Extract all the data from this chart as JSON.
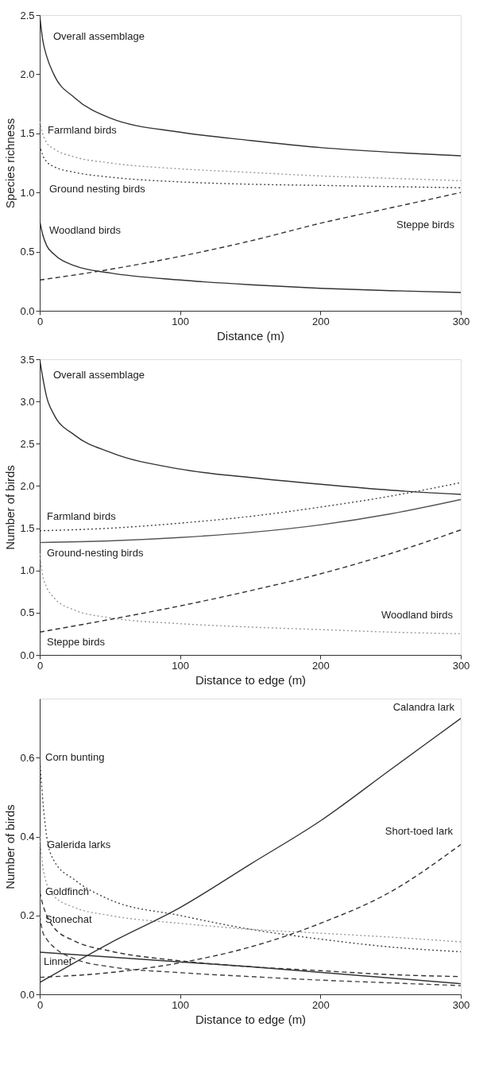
{
  "chart_data": [
    {
      "type": "line",
      "xlabel": "Distance (m)",
      "ylabel": "Species richness",
      "xlim": [
        0,
        300
      ],
      "ylim": [
        0,
        2.5
      ],
      "xticks": [
        0,
        100,
        200,
        300
      ],
      "yticks": [
        {
          "value": 0,
          "label": "0.0"
        },
        0.5,
        {
          "value": 1,
          "label": "1.0"
        },
        1.5,
        {
          "value": 2,
          "label": "2.0"
        },
        2.5
      ],
      "grid": false,
      "legend": false,
      "x": [
        0,
        2,
        5,
        10,
        25,
        50,
        100,
        150,
        200,
        250,
        300
      ],
      "series": [
        {
          "name": "Overall assemblage",
          "color": "#333333",
          "line_style": "solid",
          "values": [
            2.5,
            2.3,
            2.15,
            2.0,
            1.8,
            1.63,
            1.51,
            1.44,
            1.38,
            1.34,
            1.31
          ]
        },
        {
          "name": "Farmland birds",
          "color": "#999999",
          "line_style": "dotted",
          "values": [
            1.6,
            1.5,
            1.42,
            1.37,
            1.3,
            1.25,
            1.2,
            1.17,
            1.14,
            1.12,
            1.1
          ]
        },
        {
          "name": "Ground nesting birds",
          "color": "#444444",
          "line_style": "dotted",
          "values": [
            1.4,
            1.32,
            1.26,
            1.22,
            1.17,
            1.13,
            1.09,
            1.07,
            1.06,
            1.05,
            1.04
          ]
        },
        {
          "name": "Woodland birds",
          "color": "#333333",
          "line_style": "solid",
          "values": [
            0.76,
            0.65,
            0.55,
            0.48,
            0.38,
            0.32,
            0.26,
            0.22,
            0.19,
            0.17,
            0.155
          ]
        },
        {
          "name": "Steppe birds",
          "color": "#333333",
          "line_style": "dashed",
          "x": [
            0,
            50,
            100,
            150,
            200,
            250,
            300
          ],
          "values": [
            0.26,
            0.35,
            0.46,
            0.59,
            0.74,
            0.87,
            1.0
          ]
        }
      ]
    },
    {
      "type": "line",
      "xlabel": "Distance to edge (m)",
      "ylabel": "Number of birds",
      "xlim": [
        0,
        300
      ],
      "ylim": [
        0,
        3.5
      ],
      "xticks": [
        0,
        100,
        200,
        300
      ],
      "yticks": [
        {
          "value": 0,
          "label": "0.0"
        },
        0.5,
        {
          "value": 1,
          "label": "1.0"
        },
        1.5,
        {
          "value": 2,
          "label": "2.0"
        },
        2.5,
        {
          "value": 3,
          "label": "3.0"
        },
        3.5
      ],
      "grid": false,
      "legend": false,
      "x": [
        0,
        2,
        5,
        10,
        25,
        50,
        100,
        150,
        200,
        250,
        300
      ],
      "series": [
        {
          "name": "Overall assemblage",
          "color": "#333333",
          "line_style": "solid",
          "values": [
            3.5,
            3.3,
            3.05,
            2.85,
            2.6,
            2.4,
            2.2,
            2.1,
            2.02,
            1.95,
            1.9
          ]
        },
        {
          "name": "Farmland birds",
          "color": "#444444",
          "line_style": "dotted",
          "x": [
            0,
            50,
            100,
            150,
            200,
            250,
            300
          ],
          "values": [
            1.47,
            1.5,
            1.56,
            1.64,
            1.75,
            1.88,
            2.04
          ]
        },
        {
          "name": "Ground-nesting birds",
          "color": "#555555",
          "line_style": "solid",
          "x": [
            0,
            50,
            100,
            150,
            200,
            250,
            300
          ],
          "values": [
            1.33,
            1.35,
            1.39,
            1.45,
            1.54,
            1.67,
            1.84
          ]
        },
        {
          "name": "Woodland birds",
          "color": "#999999",
          "line_style": "dotted",
          "values": [
            1.2,
            0.95,
            0.8,
            0.68,
            0.53,
            0.44,
            0.37,
            0.33,
            0.3,
            0.27,
            0.25
          ]
        },
        {
          "name": "Steppe birds",
          "color": "#333333",
          "line_style": "dashed",
          "x": [
            0,
            50,
            100,
            150,
            200,
            250,
            300
          ],
          "values": [
            0.27,
            0.42,
            0.58,
            0.76,
            0.96,
            1.2,
            1.48
          ]
        }
      ]
    },
    {
      "type": "line",
      "xlabel": "Distance to edge (m)",
      "ylabel": "Number of birds",
      "xlim": [
        0,
        300
      ],
      "ylim": [
        0,
        0.75
      ],
      "xticks": [
        0,
        100,
        200,
        300
      ],
      "yticks": [
        {
          "value": 0,
          "label": "0.0"
        },
        0.2,
        0.4,
        0.6
      ],
      "grid": false,
      "legend": false,
      "x": [
        0,
        2,
        5,
        10,
        25,
        50,
        100,
        150,
        200,
        250,
        300
      ],
      "series": [
        {
          "name": "Corn bunting",
          "color": "#444444",
          "line_style": "dotted",
          "values": [
            0.6,
            0.5,
            0.4,
            0.34,
            0.29,
            0.24,
            0.2,
            0.165,
            0.14,
            0.12,
            0.108
          ]
        },
        {
          "name": "Galerida larks",
          "color": "#999999",
          "line_style": "dotted",
          "values": [
            0.4,
            0.33,
            0.28,
            0.25,
            0.22,
            0.2,
            0.18,
            0.165,
            0.155,
            0.145,
            0.133
          ]
        },
        {
          "name": "Goldfinch",
          "color": "#333333",
          "line_style": "dashed",
          "values": [
            0.26,
            0.23,
            0.2,
            0.17,
            0.135,
            0.11,
            0.085,
            0.07,
            0.06,
            0.05,
            0.045
          ]
        },
        {
          "name": "Stonechat",
          "color": "#444444",
          "line_style": "dashed",
          "values": [
            0.2,
            0.16,
            0.14,
            0.12,
            0.09,
            0.07,
            0.055,
            0.045,
            0.036,
            0.029,
            0.022
          ]
        },
        {
          "name": "Linnet",
          "color": "#333333",
          "line_style": "solid",
          "x": [
            0,
            150,
            300
          ],
          "values": [
            0.107,
            0.07,
            0.027
          ]
        },
        {
          "name": "Calandra lark",
          "color": "#333333",
          "line_style": "solid",
          "x": [
            0,
            50,
            100,
            150,
            200,
            250,
            300
          ],
          "values": [
            0.03,
            0.13,
            0.22,
            0.33,
            0.44,
            0.57,
            0.7
          ]
        },
        {
          "name": "Short-toed lark",
          "color": "#333333",
          "line_style": "dashed",
          "x": [
            0,
            50,
            100,
            150,
            200,
            250,
            300
          ],
          "values": [
            0.043,
            0.055,
            0.08,
            0.12,
            0.18,
            0.26,
            0.38
          ]
        }
      ]
    }
  ]
}
